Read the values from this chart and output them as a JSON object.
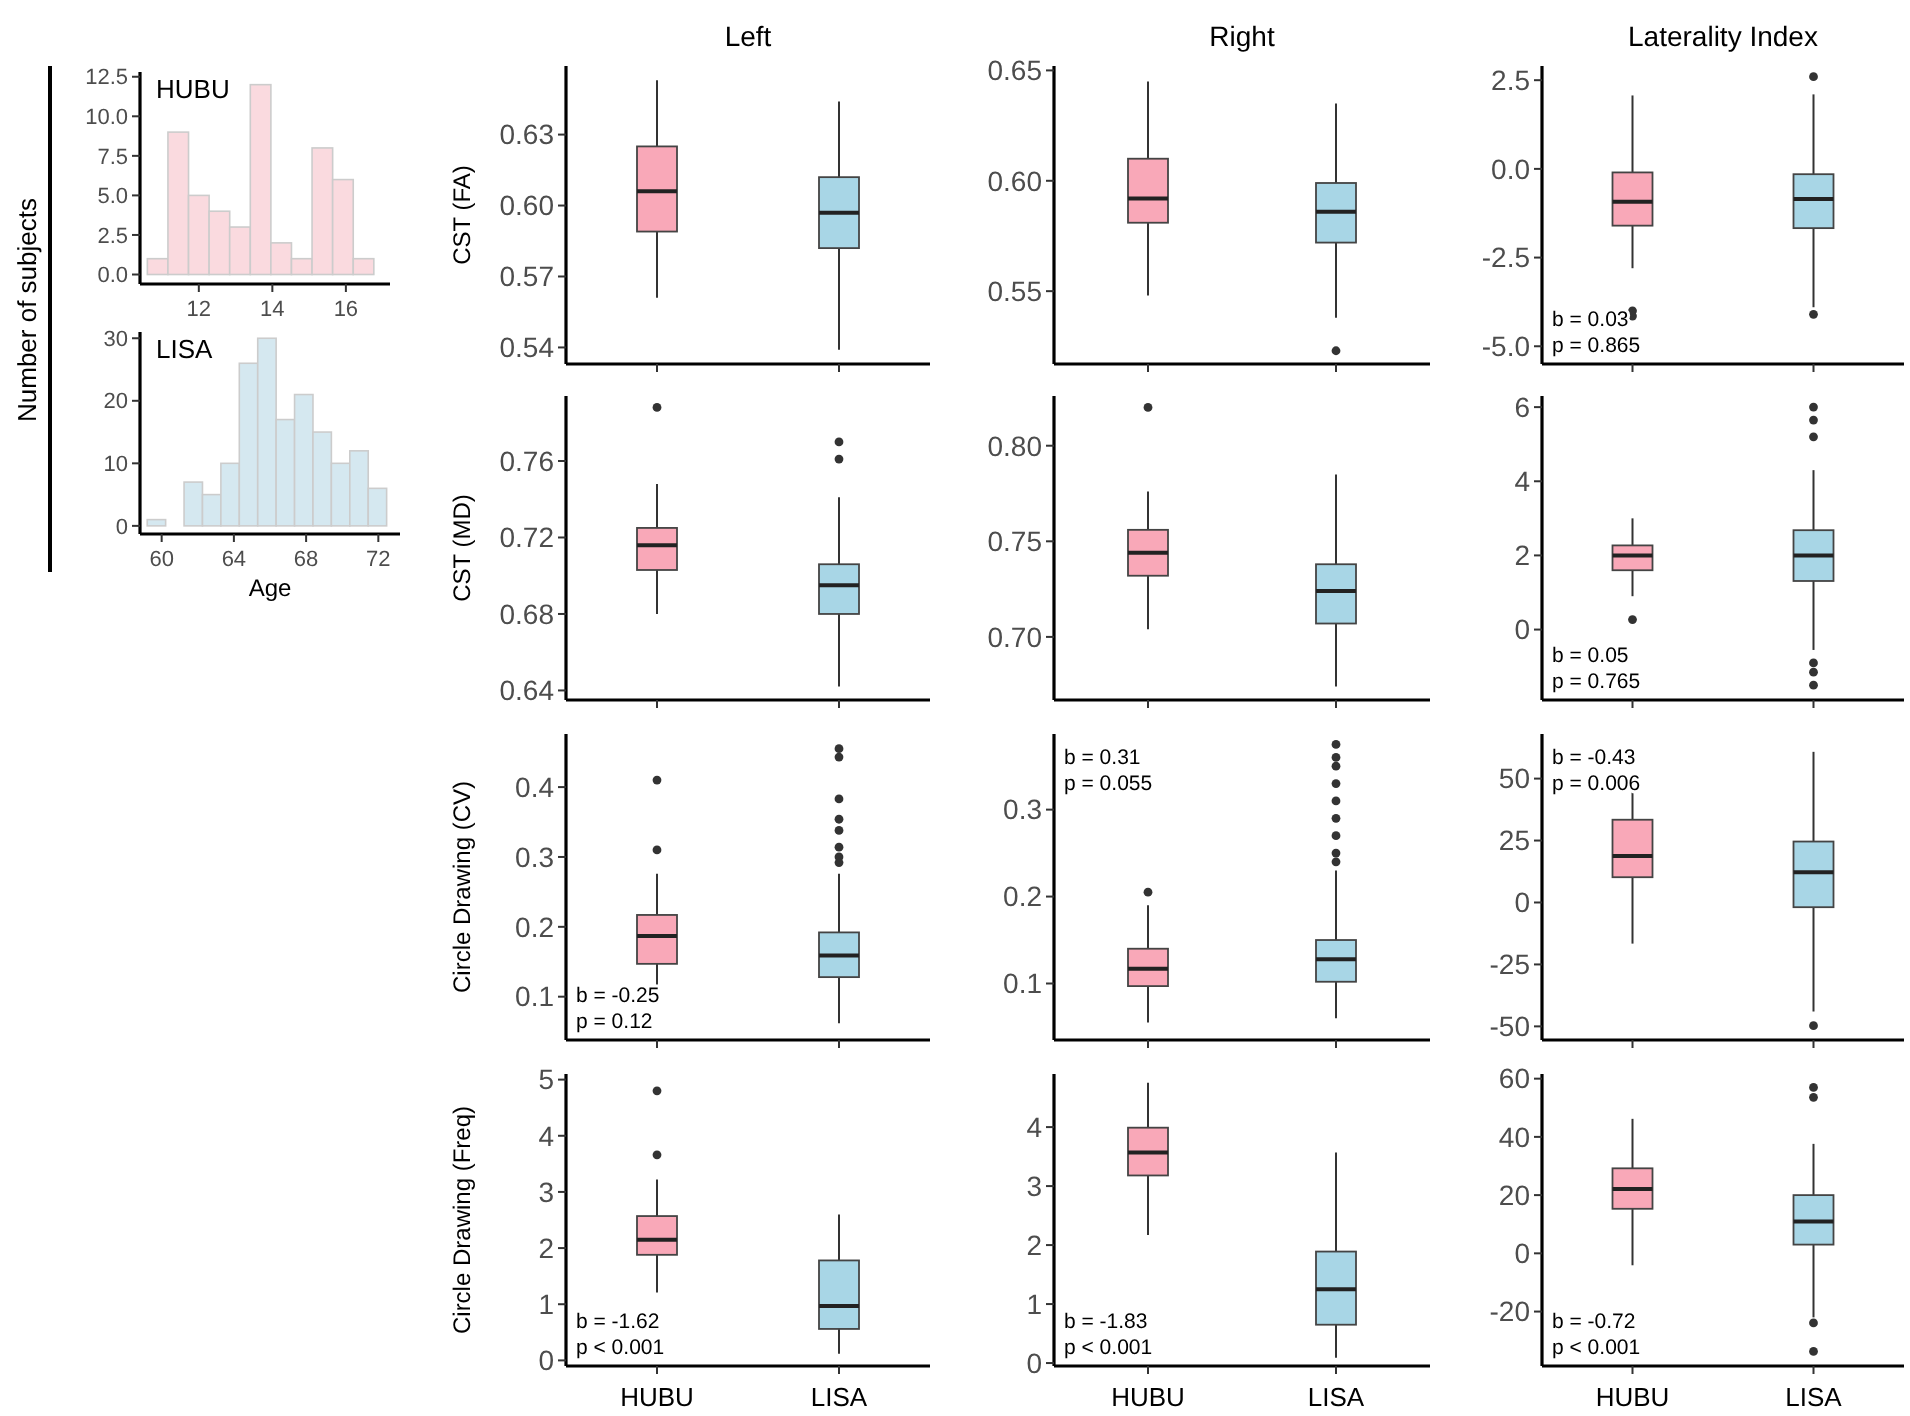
{
  "chart_data": [
    {
      "type": "histogram",
      "ylabel": "Number of subjects",
      "annotations": [
        "HUBU"
      ],
      "bins": [
        10.6,
        11.16,
        11.72,
        12.28,
        12.84,
        13.4,
        13.96,
        14.52,
        15.08,
        15.64,
        16.2,
        16.76
      ],
      "values": [
        1,
        9,
        5,
        4,
        3,
        12,
        2,
        1,
        8,
        6,
        1
      ],
      "color": "#fadadf",
      "xlim": [
        10.4,
        17.2
      ],
      "xticks": [
        12,
        14,
        16
      ],
      "ylim": [
        -0.6,
        12.8
      ],
      "yticks": [
        {
          "value": 0,
          "label": "0.0"
        },
        2.5,
        {
          "value": 5,
          "label": "5.0"
        },
        7.5,
        {
          "value": 10,
          "label": "10.0"
        },
        12.5
      ]
    },
    {
      "type": "histogram",
      "xlabel": "Age",
      "annotations": [
        "LISA"
      ],
      "bins": [
        59.2,
        60.22,
        61.24,
        62.26,
        63.28,
        64.3,
        65.32,
        66.34,
        67.36,
        68.38,
        69.4,
        70.42,
        71.44,
        72.46
      ],
      "values": [
        1,
        0,
        7,
        5,
        10,
        26,
        30,
        17,
        21,
        15,
        10,
        12,
        6
      ],
      "color": "#d5e8f0",
      "xlim": [
        58.8,
        73.2
      ],
      "xticks": [
        60,
        64,
        68,
        72
      ],
      "ylim": [
        -1.3,
        31
      ],
      "yticks": [
        0,
        10,
        20,
        30
      ]
    },
    {
      "type": "box",
      "title": "Left",
      "ylabel": "CST (FA)",
      "categories": [
        null,
        null
      ],
      "colors": [
        "#f9a8b8",
        "#a8d6e6"
      ],
      "tick_labels": "y",
      "ylim": [
        0.533,
        0.659
      ],
      "yticks": [
        0.54,
        0.57,
        {
          "value": 0.6,
          "label": "0.60"
        },
        0.63
      ],
      "boxes": [
        {
          "low": 0.561,
          "q1": 0.589,
          "median": 0.606,
          "q3": 0.625,
          "high": 0.653
        },
        {
          "low": 0.539,
          "q1": 0.582,
          "median": 0.597,
          "q3": 0.612,
          "high": 0.644
        }
      ]
    },
    {
      "type": "box",
      "title": "Right",
      "categories": [
        null,
        null
      ],
      "colors": [
        "#f9a8b8",
        "#a8d6e6"
      ],
      "tick_labels": "y",
      "ylim": [
        0.517,
        0.652
      ],
      "yticks": [
        0.55,
        {
          "value": 0.6,
          "label": "0.60"
        },
        0.65
      ],
      "boxes": [
        {
          "low": 0.548,
          "q1": 0.581,
          "median": 0.592,
          "q3": 0.61,
          "high": 0.645
        },
        {
          "low": 0.538,
          "q1": 0.572,
          "median": 0.586,
          "q3": 0.599,
          "high": 0.635,
          "outliers": [
            0.523
          ]
        }
      ]
    },
    {
      "type": "box",
      "title": "Laterality Index",
      "categories": [
        null,
        null
      ],
      "colors": [
        "#f9a8b8",
        "#a8d6e6"
      ],
      "tick_labels": "y",
      "annotations": [
        "b = 0.03",
        "p = 0.865"
      ],
      "ylim": [
        -5.5,
        2.9
      ],
      "yticks": [
        {
          "value": -5,
          "label": "-5.0"
        },
        -2.5,
        {
          "value": 0,
          "label": "0.0"
        },
        2.5
      ],
      "boxes": [
        {
          "low": -2.8,
          "q1": -1.6,
          "median": -0.93,
          "q3": -0.1,
          "high": 2.07,
          "outliers": [
            -4.0,
            -4.15,
            -5.1
          ]
        },
        {
          "low": -3.9,
          "q1": -1.67,
          "median": -0.85,
          "q3": -0.15,
          "high": 2.1,
          "outliers": [
            2.6,
            -4.1
          ]
        }
      ]
    },
    {
      "type": "box",
      "ylabel": "CST (MD)",
      "categories": [
        null,
        null
      ],
      "colors": [
        "#f9a8b8",
        "#a8d6e6"
      ],
      "tick_labels": "y",
      "ylim": [
        0.635,
        0.794
      ],
      "yticks": [
        0.64,
        0.68,
        0.72,
        0.76
      ],
      "boxes": [
        {
          "low": 0.68,
          "q1": 0.703,
          "median": 0.716,
          "q3": 0.725,
          "high": 0.748,
          "outliers": [
            0.788
          ]
        },
        {
          "low": 0.642,
          "q1": 0.68,
          "median": 0.695,
          "q3": 0.706,
          "high": 0.741,
          "outliers": [
            0.761,
            0.77
          ]
        }
      ]
    },
    {
      "type": "box",
      "categories": [
        null,
        null
      ],
      "colors": [
        "#f9a8b8",
        "#a8d6e6"
      ],
      "tick_labels": "y",
      "ylim": [
        0.667,
        0.826
      ],
      "yticks": [
        {
          "value": 0.7,
          "label": "0.70"
        },
        0.75,
        {
          "value": 0.8,
          "label": "0.80"
        }
      ],
      "boxes": [
        {
          "low": 0.704,
          "q1": 0.732,
          "median": 0.744,
          "q3": 0.756,
          "high": 0.776,
          "outliers": [
            0.82
          ]
        },
        {
          "low": 0.674,
          "q1": 0.707,
          "median": 0.724,
          "q3": 0.738,
          "high": 0.785
        }
      ]
    },
    {
      "type": "box",
      "categories": [
        null,
        null
      ],
      "colors": [
        "#f9a8b8",
        "#a8d6e6"
      ],
      "tick_labels": "y",
      "annotations": [
        "b = 0.05",
        "p = 0.765"
      ],
      "ylim": [
        -1.9,
        6.3
      ],
      "yticks": [
        0,
        2,
        4,
        6
      ],
      "boxes": [
        {
          "low": 0.9,
          "q1": 1.6,
          "median": 2.0,
          "q3": 2.27,
          "high": 3.0,
          "outliers": [
            0.27
          ]
        },
        {
          "low": -0.55,
          "q1": 1.31,
          "median": 2.0,
          "q3": 2.68,
          "high": 4.3,
          "outliers": [
            6.0,
            5.65,
            5.2,
            -0.9,
            -1.15,
            -1.5
          ]
        }
      ]
    },
    {
      "type": "box",
      "ylabel": "Circle Drawing (CV)",
      "categories": [
        null,
        null
      ],
      "colors": [
        "#f9a8b8",
        "#a8d6e6"
      ],
      "tick_labels": "y",
      "annotations": [
        "b = -0.25",
        "p = 0.12"
      ],
      "ylim": [
        0.038,
        0.476
      ],
      "yticks": [
        0.1,
        0.2,
        0.3,
        0.4
      ],
      "boxes": [
        {
          "low": 0.09,
          "q1": 0.147,
          "median": 0.187,
          "q3": 0.217,
          "high": 0.276,
          "outliers": [
            0.31,
            0.41
          ]
        },
        {
          "low": 0.062,
          "q1": 0.128,
          "median": 0.159,
          "q3": 0.192,
          "high": 0.276,
          "outliers": [
            0.292,
            0.3,
            0.314,
            0.338,
            0.354,
            0.383,
            0.443,
            0.455
          ]
        }
      ]
    },
    {
      "type": "box",
      "categories": [
        null,
        null
      ],
      "colors": [
        "#f9a8b8",
        "#a8d6e6"
      ],
      "tick_labels": "y",
      "annotations": [
        "b = 0.31",
        "p = 0.055"
      ],
      "ylim": [
        0.035,
        0.387
      ],
      "yticks": [
        0.1,
        0.2,
        0.3
      ],
      "boxes": [
        {
          "low": 0.055,
          "q1": 0.097,
          "median": 0.117,
          "q3": 0.14,
          "high": 0.19,
          "outliers": [
            0.205
          ]
        },
        {
          "low": 0.06,
          "q1": 0.102,
          "median": 0.128,
          "q3": 0.15,
          "high": 0.23,
          "outliers": [
            0.24,
            0.25,
            0.27,
            0.29,
            0.31,
            0.33,
            0.35,
            0.36,
            0.375
          ]
        }
      ]
    },
    {
      "type": "box",
      "categories": [
        null,
        null
      ],
      "colors": [
        "#f9a8b8",
        "#a8d6e6"
      ],
      "tick_labels": "y",
      "annotations": [
        "b = -0.43",
        "p = 0.006"
      ],
      "ylim": [
        -55.5,
        68
      ],
      "yticks": [
        -50,
        -25,
        0,
        25,
        50
      ],
      "boxes": [
        {
          "low": -16.6,
          "q1": 10.2,
          "median": 18.8,
          "q3": 33.4,
          "high": 50
        },
        {
          "low": -44,
          "q1": -1.9,
          "median": 12.2,
          "q3": 24.6,
          "high": 60.8,
          "outliers": [
            -49.7
          ]
        }
      ]
    },
    {
      "type": "box",
      "ylabel": "Circle Drawing (Freq)",
      "categories": [
        "HUBU",
        "LISA"
      ],
      "colors": [
        "#f9a8b8",
        "#a8d6e6"
      ],
      "annotations": [
        "b = -1.62",
        "p < 0.001"
      ],
      "ylim": [
        -0.1,
        5.1
      ],
      "yticks": [
        0,
        1,
        2,
        3,
        4,
        5
      ],
      "boxes": [
        {
          "low": 1.21,
          "q1": 1.88,
          "median": 2.15,
          "q3": 2.57,
          "high": 3.22,
          "outliers": [
            3.66,
            4.8
          ]
        },
        {
          "low": 0.12,
          "q1": 0.56,
          "median": 0.97,
          "q3": 1.78,
          "high": 2.6
        }
      ]
    },
    {
      "type": "box",
      "categories": [
        "HUBU",
        "LISA"
      ],
      "colors": [
        "#f9a8b8",
        "#a8d6e6"
      ],
      "annotations": [
        "b = -1.83",
        "p < 0.001"
      ],
      "ylim": [
        -0.05,
        4.9
      ],
      "yticks": [
        0,
        1,
        2,
        3,
        4
      ],
      "boxes": [
        {
          "low": 2.17,
          "q1": 3.18,
          "median": 3.57,
          "q3": 3.99,
          "high": 4.75
        },
        {
          "low": 0.09,
          "q1": 0.65,
          "median": 1.25,
          "q3": 1.89,
          "high": 3.57
        }
      ]
    },
    {
      "type": "box",
      "categories": [
        "HUBU",
        "LISA"
      ],
      "colors": [
        "#f9a8b8",
        "#a8d6e6"
      ],
      "annotations": [
        "b = -0.72",
        "p < 0.001"
      ],
      "ylim": [
        -38.7,
        61.6
      ],
      "yticks": [
        -20,
        0,
        20,
        40,
        60
      ],
      "boxes": [
        {
          "low": -4.1,
          "q1": 15.3,
          "median": 22.1,
          "q3": 29.2,
          "high": 46.2
        },
        {
          "low": -22,
          "q1": 3.0,
          "median": 10.9,
          "q3": 20,
          "high": 37.6,
          "outliers": [
            53.6,
            57,
            -23.9,
            -33.7
          ]
        }
      ]
    }
  ]
}
